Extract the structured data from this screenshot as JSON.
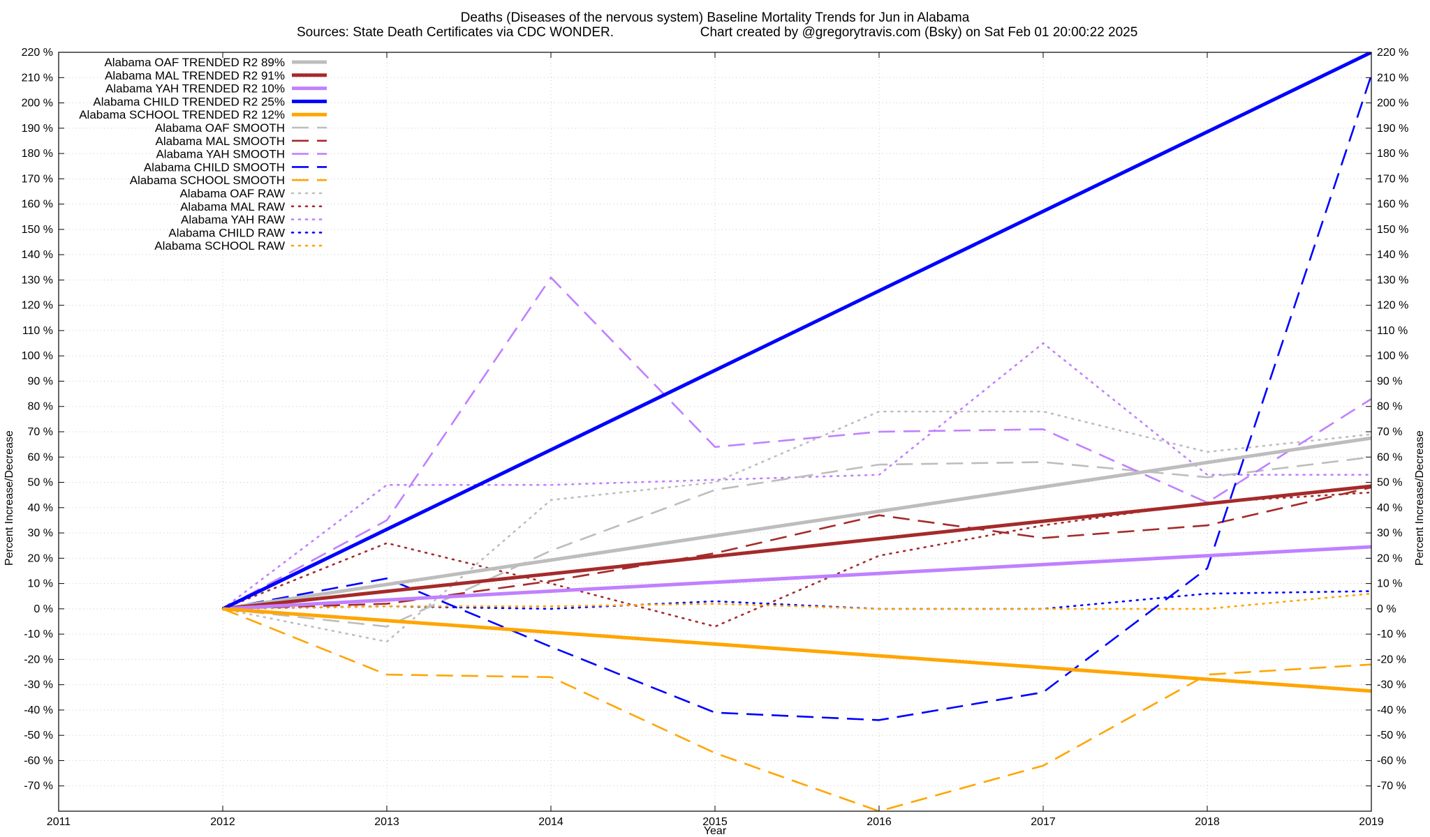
{
  "chart_data": {
    "type": "line",
    "title": "Deaths (Diseases of the nervous system)  Baseline Mortality Trends for Jun in Alabama",
    "subtitle_left": "Sources: State Death Certificates via CDC WONDER.",
    "subtitle_right": "Chart created by @gregorytravis.com (Bsky) on Sat Feb 01 20:00:22 2025",
    "xlabel": "Year",
    "ylabel": "Percent Increase/Decrease",
    "ylabel_right": "Percent Increase/Decrease",
    "xlim": [
      2011,
      2019
    ],
    "ylim": [
      -80,
      220
    ],
    "x_ticks": [
      "2011",
      "2012",
      "2013",
      "2014",
      "2015",
      "2016",
      "2017",
      "2018",
      "2019"
    ],
    "y_ticks": [
      -70,
      -60,
      -50,
      -40,
      -30,
      -20,
      -10,
      0,
      10,
      20,
      30,
      40,
      50,
      60,
      70,
      80,
      90,
      100,
      110,
      120,
      130,
      140,
      150,
      160,
      170,
      180,
      190,
      200,
      210,
      220
    ],
    "y_tick_suffix": " %",
    "grid": true,
    "legend_position": "top-left",
    "series": [
      {
        "name": "Alabama OAF TRENDED R2  89%",
        "style": "solid",
        "color": "#bdbdbd",
        "x": [
          2012,
          2019
        ],
        "values": [
          0,
          67.5
        ]
      },
      {
        "name": "Alabama MAL TRENDED R2  91%",
        "style": "solid",
        "color": "#a52a2a",
        "x": [
          2012,
          2019
        ],
        "values": [
          0,
          48.5
        ]
      },
      {
        "name": "Alabama YAH TRENDED R2  10%",
        "style": "solid",
        "color": "#c080ff",
        "x": [
          2012,
          2019
        ],
        "values": [
          0,
          24.5
        ]
      },
      {
        "name": "Alabama CHILD TRENDED R2  25%",
        "style": "solid",
        "color": "#0000ff",
        "x": [
          2012,
          2019
        ],
        "values": [
          0,
          220
        ]
      },
      {
        "name": "Alabama SCHOOL TRENDED R2  12%",
        "style": "solid",
        "color": "#ffa500",
        "x": [
          2012,
          2019
        ],
        "values": [
          0,
          -32.5
        ]
      },
      {
        "name": "Alabama OAF SMOOTH",
        "style": "dashed",
        "color": "#bdbdbd",
        "x": [
          2012,
          2013,
          2014,
          2015,
          2016,
          2017,
          2018,
          2019
        ],
        "values": [
          0,
          -7,
          23,
          47,
          57,
          58,
          52,
          60
        ]
      },
      {
        "name": "Alabama MAL SMOOTH",
        "style": "dashed",
        "color": "#a52a2a",
        "x": [
          2012,
          2013,
          2014,
          2015,
          2016,
          2017,
          2018,
          2019
        ],
        "values": [
          0,
          2,
          11,
          22,
          37,
          28,
          33,
          48
        ]
      },
      {
        "name": "Alabama YAH SMOOTH",
        "style": "dashed",
        "color": "#c080ff",
        "x": [
          2012,
          2013,
          2014,
          2015,
          2016,
          2017,
          2018,
          2019
        ],
        "values": [
          0,
          35,
          131,
          64,
          70,
          71,
          42,
          83
        ]
      },
      {
        "name": "Alabama CHILD SMOOTH",
        "style": "dashed",
        "color": "#0000ff",
        "x": [
          2012,
          2013,
          2014,
          2015,
          2016,
          2017,
          2018,
          2019
        ],
        "values": [
          0,
          12,
          -15,
          -41,
          -44,
          -33,
          16,
          211
        ]
      },
      {
        "name": "Alabama SCHOOL SMOOTH",
        "style": "dashed",
        "color": "#ffa500",
        "x": [
          2012,
          2013,
          2014,
          2015,
          2016,
          2017,
          2018,
          2019
        ],
        "values": [
          0,
          -26,
          -27,
          -57,
          -80,
          -62,
          -26,
          -22
        ]
      },
      {
        "name": "Alabama OAF RAW",
        "style": "dotted",
        "color": "#bdbdbd",
        "x": [
          2012,
          2013,
          2014,
          2015,
          2016,
          2017,
          2018,
          2019
        ],
        "values": [
          0,
          -13,
          43,
          50,
          78,
          78,
          62,
          69
        ]
      },
      {
        "name": "Alabama MAL RAW",
        "style": "dotted",
        "color": "#a52a2a",
        "x": [
          2012,
          2013,
          2014,
          2015,
          2016,
          2017,
          2018,
          2019
        ],
        "values": [
          0,
          26,
          10,
          -7,
          21,
          33,
          42,
          46
        ]
      },
      {
        "name": "Alabama YAH RAW",
        "style": "dotted",
        "color": "#c080ff",
        "x": [
          2012,
          2013,
          2014,
          2015,
          2016,
          2017,
          2018,
          2019
        ],
        "values": [
          0,
          49,
          49,
          51,
          53,
          105,
          53,
          53
        ]
      },
      {
        "name": "Alabama CHILD RAW",
        "style": "dotted",
        "color": "#0000ff",
        "x": [
          2012,
          2013,
          2014,
          2015,
          2016,
          2017,
          2018,
          2019
        ],
        "values": [
          0,
          1,
          0,
          3,
          0,
          0,
          6,
          7
        ]
      },
      {
        "name": "Alabama SCHOOL RAW",
        "style": "dotted",
        "color": "#ffa500",
        "x": [
          2012,
          2013,
          2014,
          2015,
          2016,
          2017,
          2018,
          2019
        ],
        "values": [
          0,
          1,
          1,
          2,
          0,
          0,
          0,
          6
        ]
      }
    ]
  }
}
